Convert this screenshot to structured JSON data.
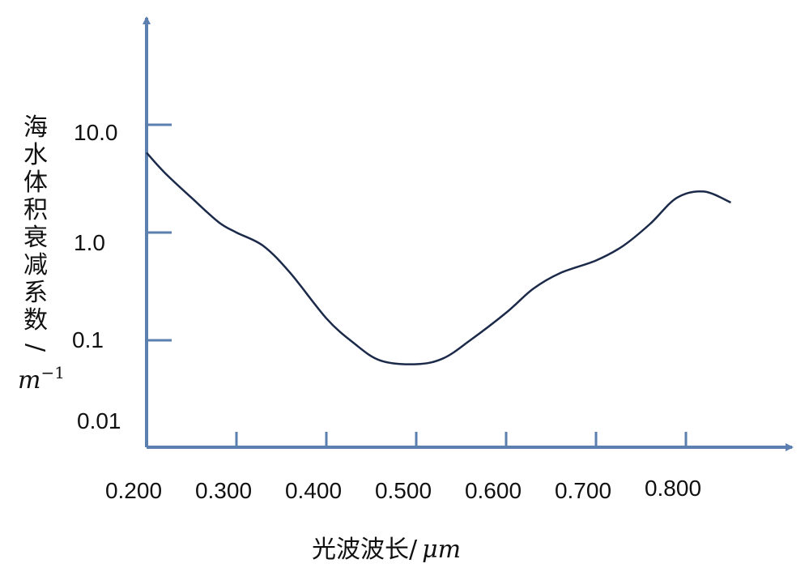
{
  "colors": {
    "axis": "#5B7FAF",
    "curve": "#1C2A4A",
    "text": "#111111"
  },
  "chart_data": {
    "type": "line",
    "title": "",
    "ylabel_chars": [
      "海",
      "水",
      "体",
      "积",
      "衰",
      "减",
      "系",
      "数",
      "/"
    ],
    "ylabel_unit": "m",
    "ylabel_unit_exp": "−1",
    "xlabel_text": "光波波长/",
    "xlabel_unit": "μm",
    "y_scale": "log",
    "ylim": [
      0.01,
      10.0
    ],
    "xlim": [
      0.2,
      0.85
    ],
    "x_ticks": [
      0.2,
      0.3,
      0.4,
      0.5,
      0.6,
      0.7,
      0.8
    ],
    "x_tick_labels": [
      "0.200",
      "0.300",
      "0.400",
      "0.500",
      "0.600",
      "0.700",
      "0.800"
    ],
    "y_ticks": [
      10.0,
      1.0,
      0.1,
      0.01
    ],
    "y_tick_labels": [
      "10.0",
      "1.0",
      "0.1",
      "0.01"
    ],
    "grid": false,
    "series": [
      {
        "x": [
          0.2,
          0.22,
          0.25,
          0.28,
          0.3,
          0.33,
          0.36,
          0.4,
          0.43,
          0.46,
          0.5,
          0.53,
          0.56,
          0.6,
          0.63,
          0.66,
          0.7,
          0.73,
          0.76,
          0.79,
          0.82,
          0.85
        ],
        "y": [
          5.5,
          3.6,
          2.1,
          1.25,
          1.0,
          0.75,
          0.42,
          0.16,
          0.095,
          0.065,
          0.06,
          0.068,
          0.1,
          0.18,
          0.3,
          0.42,
          0.55,
          0.75,
          1.2,
          2.1,
          2.4,
          1.9
        ]
      }
    ]
  }
}
